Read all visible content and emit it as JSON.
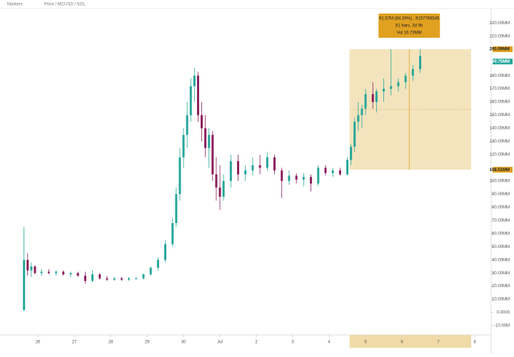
{
  "toolbar": {
    "items": [
      "Markers",
      "Price / MC",
      "USD / SOL"
    ]
  },
  "chart_data": {
    "type": "candlestick",
    "x": [
      25.62,
      25.72,
      25.82,
      25.92,
      26.1,
      26.3,
      26.5,
      26.7,
      26.9,
      27.1,
      27.3,
      27.5,
      27.7,
      27.9,
      28.1,
      28.3,
      28.5,
      28.7,
      28.9,
      29.1,
      29.3,
      29.5,
      29.7,
      29.8,
      29.9,
      30.0,
      30.1,
      30.2,
      30.3,
      30.4,
      30.5,
      30.6,
      30.7,
      30.8,
      30.9,
      31.0,
      31.1,
      31.3,
      31.5,
      31.7,
      31.9,
      32.1,
      32.3,
      32.5,
      32.7,
      32.9,
      33.1,
      33.3,
      33.5,
      33.7,
      33.9,
      34.1,
      34.3,
      34.5,
      34.6,
      34.7,
      34.8,
      34.9,
      35.0,
      35.2,
      35.3,
      35.5,
      35.7,
      35.9,
      36.1,
      36.3,
      36.5
    ],
    "open": [
      2,
      40,
      32,
      35,
      30,
      31,
      30,
      31,
      29,
      30,
      28,
      24,
      29,
      26,
      25,
      26,
      25,
      26,
      26,
      29,
      34,
      40,
      52,
      68,
      90,
      118,
      135,
      150,
      172,
      180,
      150,
      140,
      125,
      135,
      105,
      95,
      88,
      100,
      115,
      105,
      108,
      112,
      110,
      118,
      108,
      100,
      104,
      101,
      103,
      98,
      110,
      106,
      108,
      105,
      116,
      126,
      145,
      150,
      155,
      166,
      160,
      168,
      170,
      172,
      175,
      180,
      185
    ],
    "high": [
      65,
      45,
      38,
      36,
      33,
      33,
      32,
      32,
      31,
      31,
      31,
      32,
      30,
      28,
      27,
      27,
      27,
      27,
      30,
      35,
      42,
      55,
      72,
      95,
      125,
      140,
      160,
      178,
      186,
      183,
      160,
      150,
      140,
      138,
      118,
      112,
      105,
      120,
      120,
      112,
      118,
      120,
      122,
      120,
      110,
      108,
      106,
      106,
      105,
      112,
      112,
      110,
      110,
      118,
      128,
      148,
      160,
      158,
      170,
      175,
      170,
      178,
      200,
      178,
      182,
      188,
      200
    ],
    "low": [
      1,
      28,
      27,
      29,
      28,
      29,
      28,
      28,
      27,
      27,
      22,
      23,
      25,
      24,
      24,
      24,
      24,
      25,
      25,
      28,
      32,
      38,
      50,
      65,
      85,
      110,
      125,
      145,
      160,
      145,
      130,
      118,
      110,
      100,
      85,
      78,
      85,
      95,
      100,
      100,
      104,
      105,
      108,
      105,
      87,
      97,
      98,
      96,
      92,
      96,
      104,
      103,
      104,
      104,
      112,
      122,
      138,
      140,
      150,
      155,
      152,
      160,
      165,
      168,
      170,
      176,
      182
    ],
    "close": [
      40,
      32,
      35,
      30,
      31,
      30,
      31,
      29,
      30,
      28,
      24,
      29,
      26,
      25,
      26,
      25,
      26,
      26,
      29,
      34,
      40,
      52,
      68,
      90,
      118,
      135,
      150,
      172,
      180,
      150,
      140,
      125,
      135,
      105,
      95,
      88,
      100,
      115,
      105,
      108,
      112,
      110,
      118,
      108,
      100,
      104,
      101,
      103,
      98,
      110,
      106,
      108,
      105,
      116,
      126,
      145,
      150,
      155,
      166,
      160,
      168,
      170,
      172,
      175,
      180,
      185,
      195
    ],
    "up_color": "#26a69a",
    "down_color": "#8b1d5e",
    "xlim": [
      24.96,
      38.45
    ],
    "xticks": [
      26,
      27,
      28,
      29,
      30,
      {
        "value": 31,
        "label": "Jul"
      },
      {
        "value": 32,
        "label": "2"
      },
      {
        "value": 33,
        "label": "3"
      },
      {
        "value": 34,
        "label": "4"
      },
      {
        "value": 35,
        "label": "5"
      },
      {
        "value": 36,
        "label": "6"
      },
      {
        "value": 37,
        "label": "7"
      },
      {
        "value": 38,
        "label": "8"
      }
    ],
    "ylim": [
      -17,
      231
    ],
    "yticks": [
      {
        "value": -10,
        "label": "-10.00M"
      },
      {
        "value": 0,
        "label": "0.0000"
      },
      {
        "value": 10,
        "label": "10.00MM"
      },
      {
        "value": 20,
        "label": "20.00MM"
      },
      {
        "value": 30,
        "label": "30.00MM"
      },
      {
        "value": 40,
        "label": "40.00MM"
      },
      {
        "value": 50,
        "label": "50.00MM"
      },
      {
        "value": 60,
        "label": "60.00MM"
      },
      {
        "value": 70,
        "label": "70.00MM"
      },
      {
        "value": 80,
        "label": "80.00MM"
      },
      {
        "value": 90,
        "label": "90.00MM"
      },
      {
        "value": 100,
        "label": "100.00MM"
      },
      {
        "value": 120,
        "label": "120.00MM"
      },
      {
        "value": 130,
        "label": "130.00MM"
      },
      {
        "value": 140,
        "label": "140.00MM"
      },
      {
        "value": 150,
        "label": "150.00MM"
      },
      {
        "value": 160,
        "label": "160.00MM"
      },
      {
        "value": 170,
        "label": "170.00MM"
      },
      {
        "value": 180,
        "label": "180.00MM"
      },
      {
        "value": 210,
        "label": "210.00MM"
      },
      {
        "value": 220,
        "label": "220.00MM"
      }
    ],
    "current_price": {
      "value": 190.75,
      "label": "190.75MM"
    },
    "range_box": {
      "top": {
        "value": 200.09,
        "label": "200.09MM"
      },
      "bottom": {
        "value": 108.51,
        "label": "108.51MM"
      },
      "x_start": 34.56,
      "x_end": 37.9,
      "color": "#f0dba8",
      "lines": [
        "91.57M (84.39%) , 9157766545",
        "81 bars, 3d 9h",
        "Vol 16.73MM"
      ]
    }
  }
}
